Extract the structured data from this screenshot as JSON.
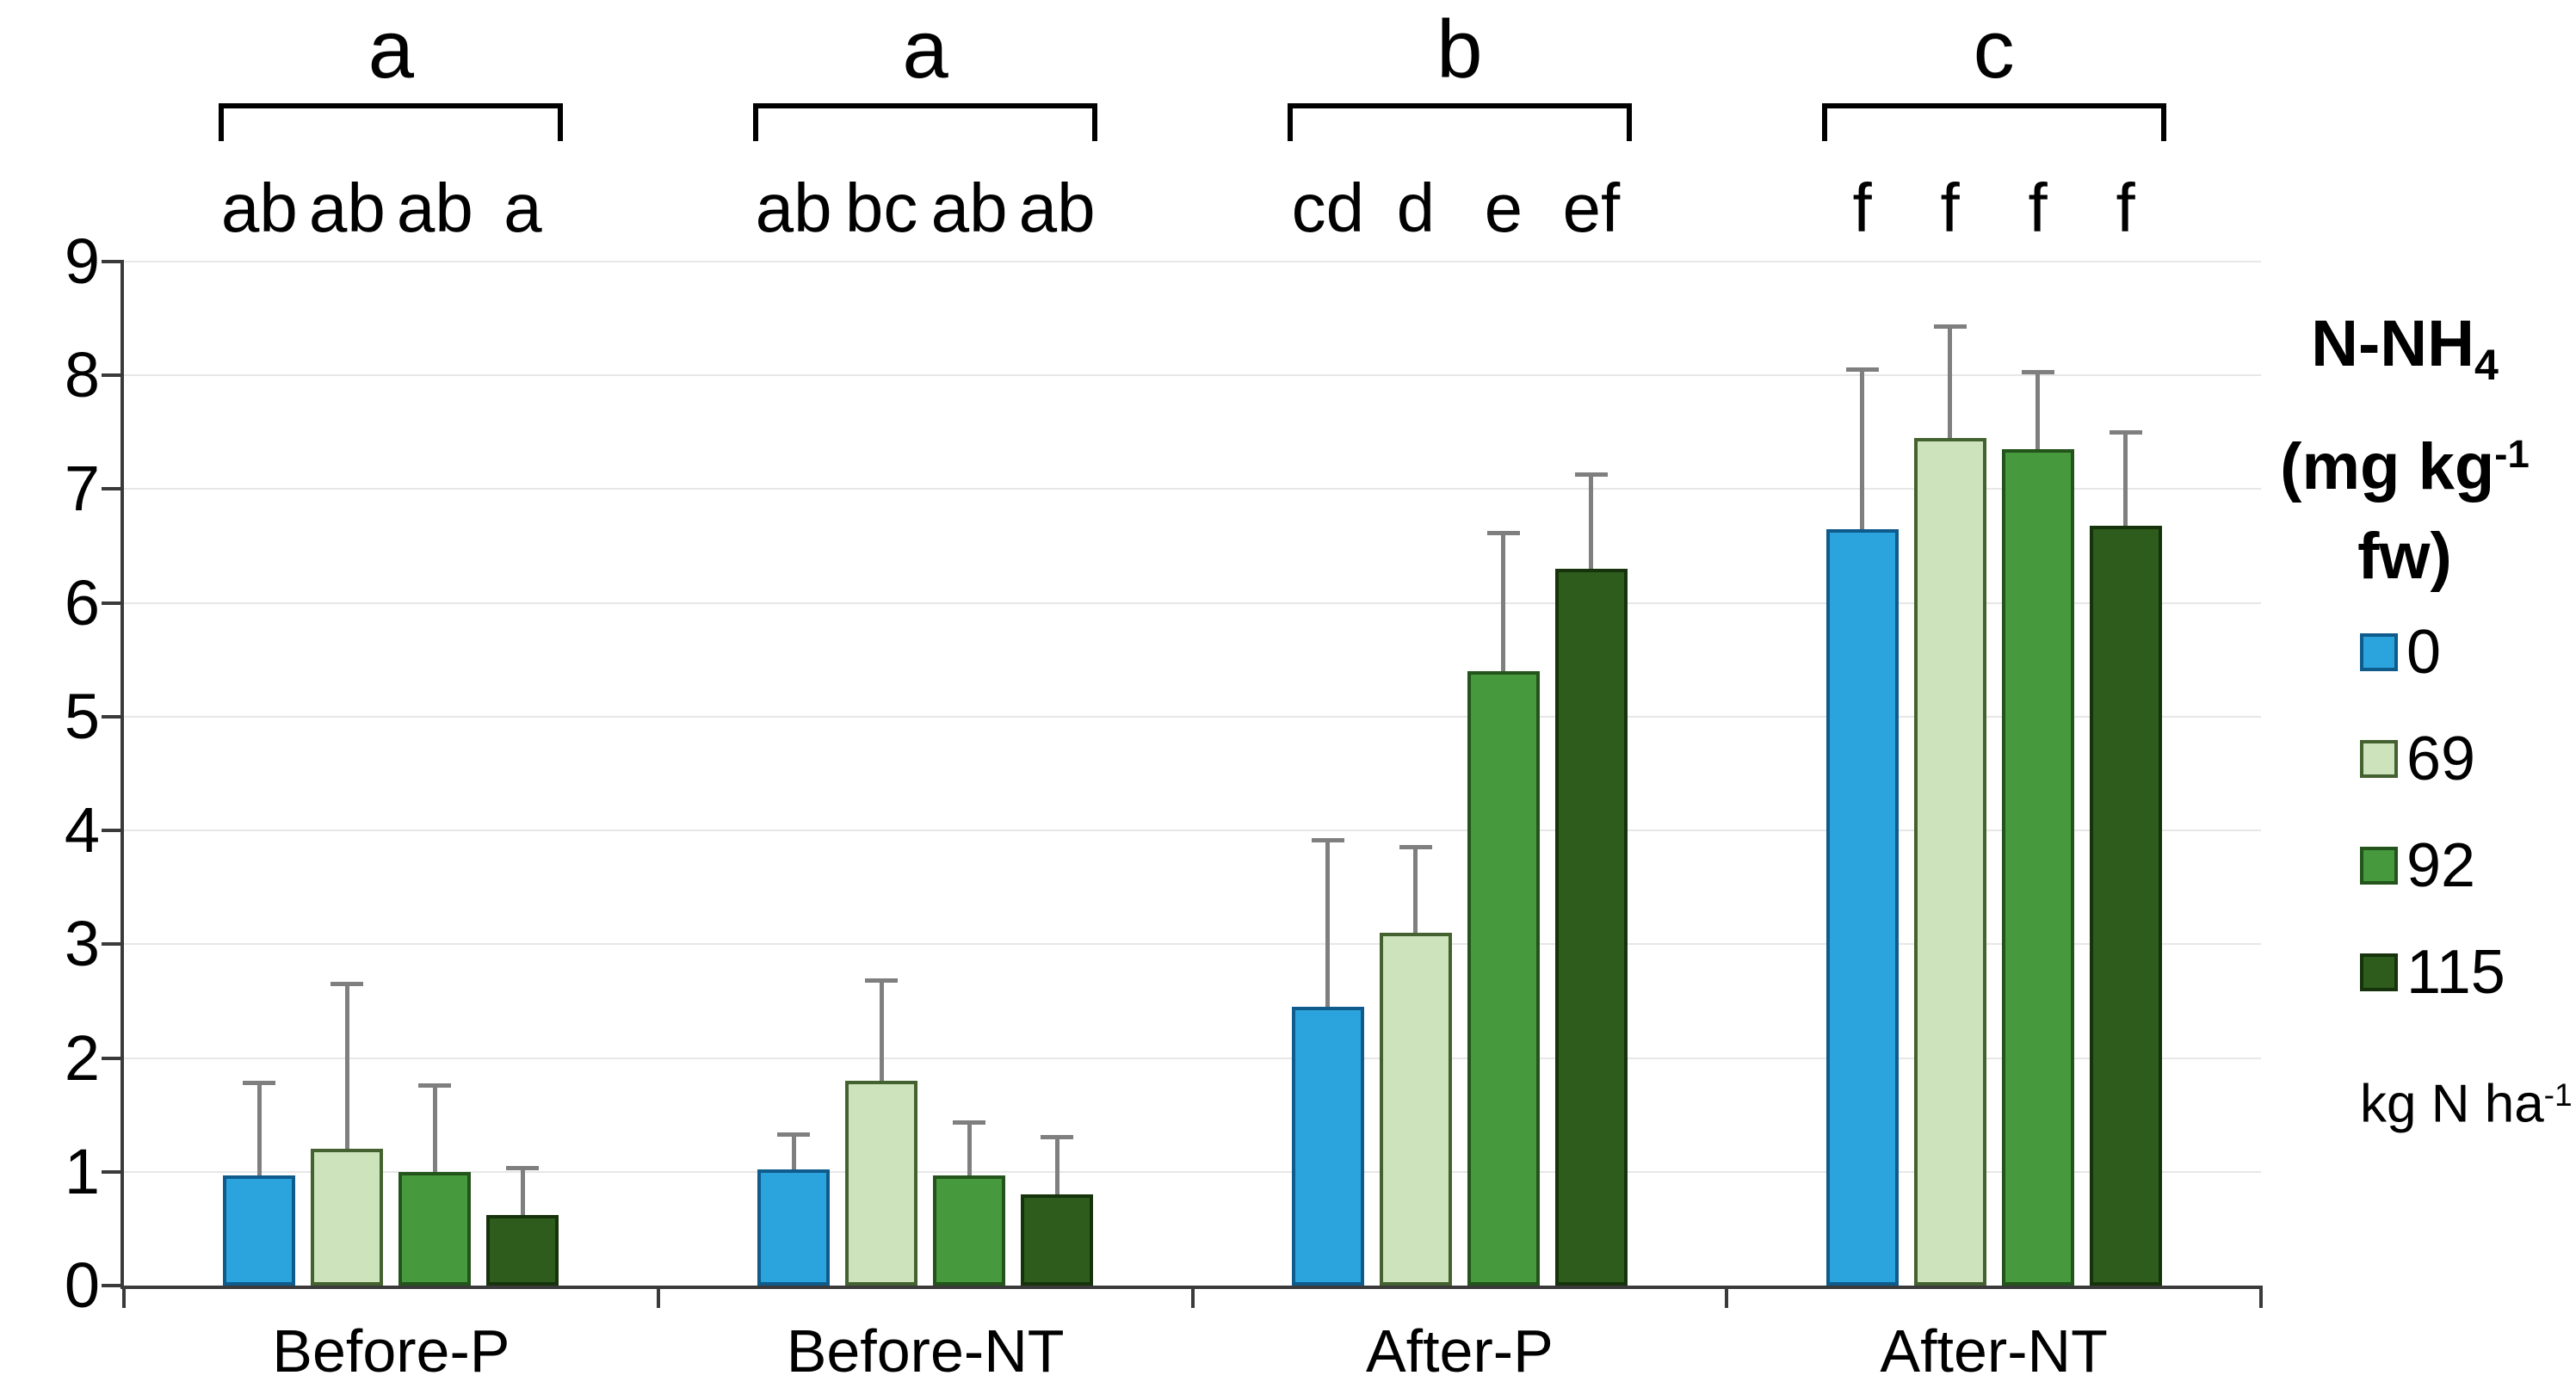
{
  "chart_data": {
    "type": "bar",
    "title": "",
    "categories": [
      "Before-P",
      "Before-NT",
      "After-P",
      "After-NT"
    ],
    "group_letters": [
      "a",
      "a",
      "b",
      "c"
    ],
    "bar_letters": [
      [
        "ab",
        "ab",
        "ab",
        "a"
      ],
      [
        "ab",
        "bc",
        "ab",
        "ab"
      ],
      [
        "cd",
        "d",
        "e",
        "ef"
      ],
      [
        "f",
        "f",
        "f",
        "f"
      ]
    ],
    "series": [
      {
        "name": "0",
        "color": "#2ba3dc",
        "border": "#0f5c8c",
        "values": [
          0.97,
          1.02,
          2.45,
          6.65
        ],
        "errors": [
          0.83,
          0.33,
          1.48,
          1.42
        ]
      },
      {
        "name": "69",
        "color": "#cde3bc",
        "border": "#44622f",
        "values": [
          1.2,
          1.8,
          3.1,
          7.45
        ],
        "errors": [
          1.47,
          0.9,
          0.77,
          1.0
        ]
      },
      {
        "name": "92",
        "color": "#46993c",
        "border": "#23541b",
        "values": [
          1.0,
          0.97,
          5.4,
          7.35
        ],
        "errors": [
          0.78,
          0.48,
          1.23,
          0.7
        ]
      },
      {
        "name": "115",
        "color": "#2e5c1c",
        "border": "#16330c",
        "values": [
          0.62,
          0.8,
          6.3,
          6.68
        ],
        "errors": [
          0.43,
          0.52,
          0.85,
          0.84
        ]
      }
    ],
    "ylim": [
      0,
      9
    ],
    "ytick_step": 1,
    "legend": {
      "title_main": "N-NH",
      "title_sub": "4",
      "unit_pre": "(mg kg",
      "unit_sup": "-1",
      "unit_post": " fw)",
      "bottom_pre": "kg N ha",
      "bottom_sup": "-1"
    },
    "colors": {
      "error_bar": "#7f7f7f",
      "axis": "#3a3a3a",
      "gridline": "#e7e7e7",
      "text": "#000000"
    },
    "legend_position": "right",
    "grid": true
  }
}
